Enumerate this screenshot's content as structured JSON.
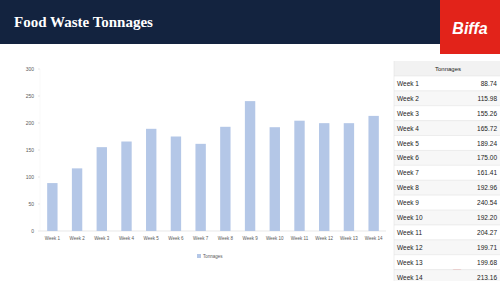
{
  "header": {
    "title": "Food Waste Tonnages",
    "logo": "Biffa"
  },
  "chart_data": {
    "type": "bar",
    "categories": [
      "Week 1",
      "Week 2",
      "Week 3",
      "Week 4",
      "Week 5",
      "Week 6",
      "Week 7",
      "Week 8",
      "Week 9",
      "Week 10",
      "Week 11",
      "Week 12",
      "Week 13",
      "Week 14"
    ],
    "series": [
      {
        "name": "Tonnages",
        "color": "#b4c7e7",
        "values": [
          88.74,
          115.98,
          155.26,
          165.72,
          189.24,
          175.0,
          161.41,
          192.96,
          240.54,
          192.2,
          204.27,
          199.71,
          199.68,
          213.16
        ]
      }
    ],
    "ylim": [
      0,
      300
    ],
    "yticks": [
      0,
      50,
      100,
      150,
      200,
      250,
      300
    ],
    "grid": false,
    "legend": "bottom"
  },
  "table": {
    "header": "Tonnages",
    "rows": [
      [
        "Week 1",
        "88.74"
      ],
      [
        "Week 2",
        "115.98"
      ],
      [
        "Week 3",
        "155.26"
      ],
      [
        "Week 4",
        "165.72"
      ],
      [
        "Week 5",
        "189.24"
      ],
      [
        "Week 6",
        "175.00"
      ],
      [
        "Week 7",
        "161.41"
      ],
      [
        "Week 8",
        "192.96"
      ],
      [
        "Week 9",
        "240.54"
      ],
      [
        "Week 10",
        "192.20"
      ],
      [
        "Week 11",
        "204.27"
      ],
      [
        "Week 12",
        "199.71"
      ],
      [
        "Week 13",
        "199.68"
      ],
      [
        "Week 14",
        "213.16"
      ]
    ]
  }
}
